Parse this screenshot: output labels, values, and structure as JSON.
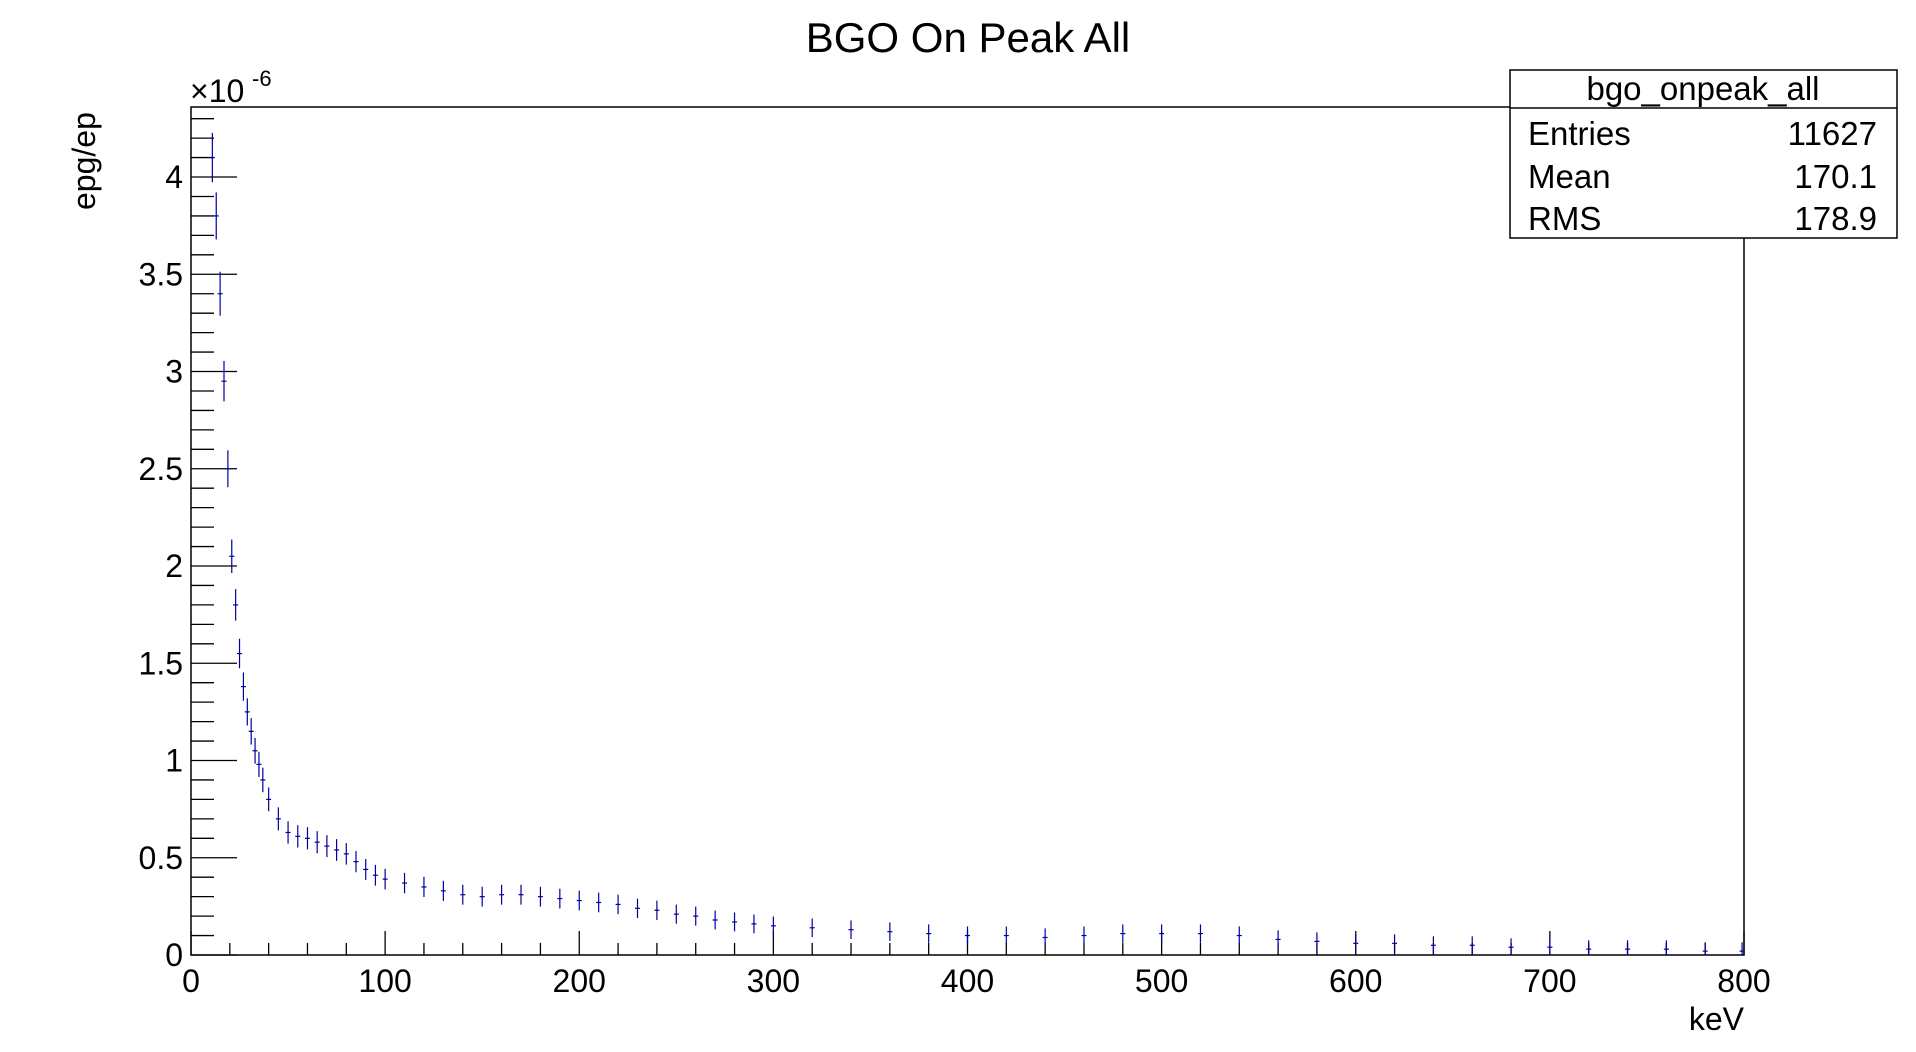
{
  "chart_data": {
    "type": "scatter",
    "style": "histogram-with-error-bars",
    "title": "BGO On Peak All",
    "xlabel": "keV",
    "ylabel": "epg/ep",
    "y_exponent": "-6",
    "xlim": [
      0,
      800
    ],
    "ylim": [
      0,
      4.36
    ],
    "x_ticks": [
      0,
      100,
      200,
      300,
      400,
      500,
      600,
      700,
      800
    ],
    "x_tick_labels": [
      "0",
      "100",
      "200",
      "300",
      "400",
      "500",
      "600",
      "700",
      "800"
    ],
    "y_ticks": [
      0,
      0.5,
      1,
      1.5,
      2,
      2.5,
      3,
      3.5,
      4
    ],
    "y_tick_labels": [
      "0",
      "0.5",
      "1",
      "1.5",
      "2",
      "2.5",
      "3",
      "3.5",
      "4"
    ],
    "grid": false,
    "marker_color": "#00009c",
    "stats_box": {
      "name": "bgo_onpeak_all",
      "rows": [
        {
          "label": "Entries",
          "value": "11627"
        },
        {
          "label": "Mean",
          "value": "170.1"
        },
        {
          "label": "RMS",
          "value": "178.9"
        }
      ]
    },
    "series": [
      {
        "x": [
          11,
          13,
          15,
          17,
          19,
          21,
          23,
          25,
          27,
          29,
          31,
          33,
          35,
          37,
          40,
          45,
          50,
          55,
          60,
          65,
          70,
          75,
          80,
          85,
          90,
          95,
          100,
          110,
          120,
          130,
          140,
          150,
          160,
          170,
          180,
          190,
          200,
          210,
          220,
          230,
          240,
          250,
          260,
          270,
          280,
          290,
          300,
          320,
          340,
          360,
          380,
          400,
          420,
          440,
          460,
          480,
          500,
          520,
          540,
          560,
          580,
          600,
          620,
          640,
          660,
          680,
          700,
          720,
          740,
          760,
          780,
          799
        ],
        "y": [
          4.1,
          3.8,
          3.4,
          2.95,
          2.5,
          2.05,
          1.8,
          1.55,
          1.38,
          1.25,
          1.15,
          1.05,
          0.98,
          0.9,
          0.8,
          0.7,
          0.63,
          0.61,
          0.6,
          0.58,
          0.56,
          0.54,
          0.52,
          0.48,
          0.44,
          0.41,
          0.39,
          0.37,
          0.35,
          0.33,
          0.31,
          0.3,
          0.31,
          0.31,
          0.3,
          0.29,
          0.28,
          0.27,
          0.26,
          0.24,
          0.23,
          0.21,
          0.2,
          0.18,
          0.17,
          0.16,
          0.15,
          0.14,
          0.13,
          0.12,
          0.11,
          0.1,
          0.1,
          0.09,
          0.1,
          0.11,
          0.11,
          0.11,
          0.1,
          0.08,
          0.07,
          0.06,
          0.06,
          0.05,
          0.05,
          0.04,
          0.04,
          0.03,
          0.03,
          0.03,
          0.02,
          0.02
        ]
      }
    ]
  }
}
